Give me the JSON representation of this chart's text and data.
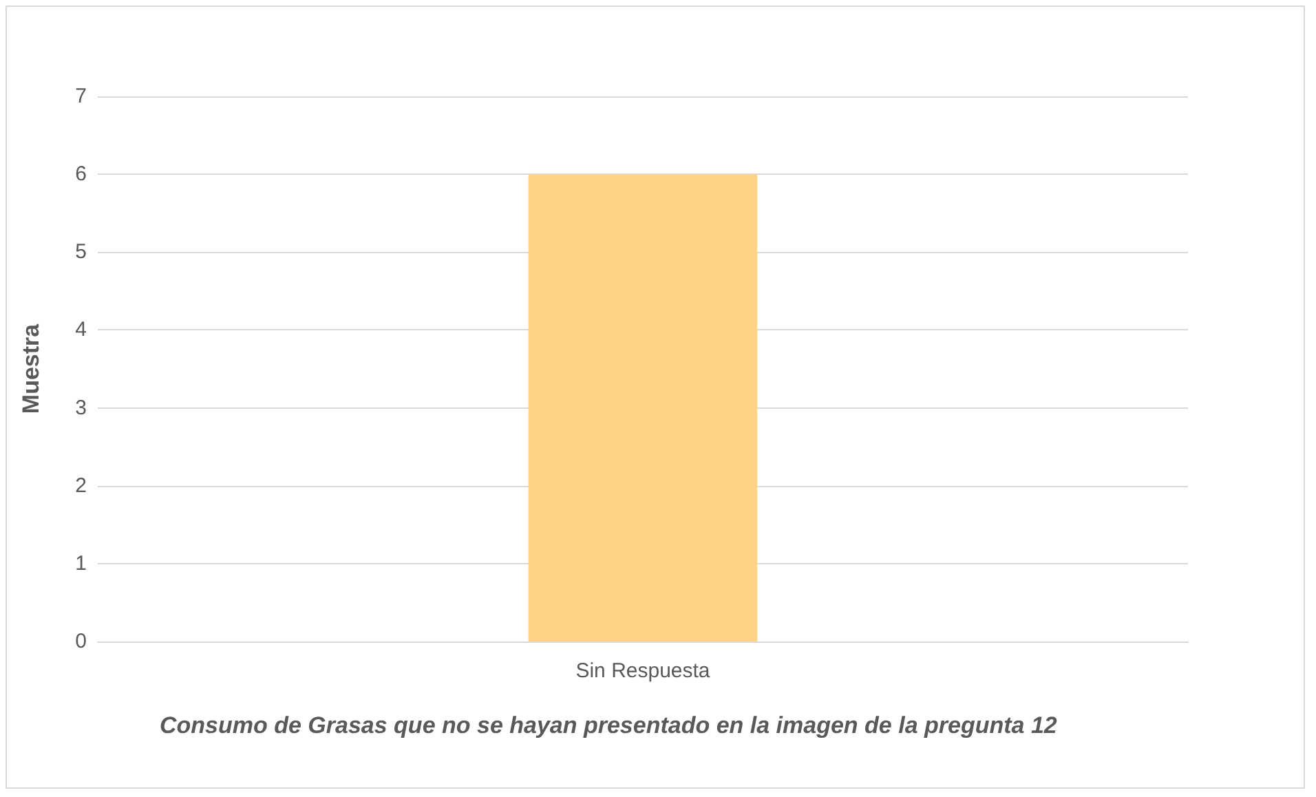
{
  "chart_data": {
    "type": "bar",
    "xlabel": "Consumo de Grasas que no se hayan presentado en la imagen de la pregunta 12",
    "ylabel": "Muestra",
    "categories": [
      "Sin Respuesta"
    ],
    "values": [
      6
    ],
    "color": "#ffd285",
    "ylim": [
      0,
      7
    ],
    "yticks": [
      0,
      1,
      2,
      3,
      4,
      5,
      6,
      7
    ],
    "grid": "y"
  }
}
